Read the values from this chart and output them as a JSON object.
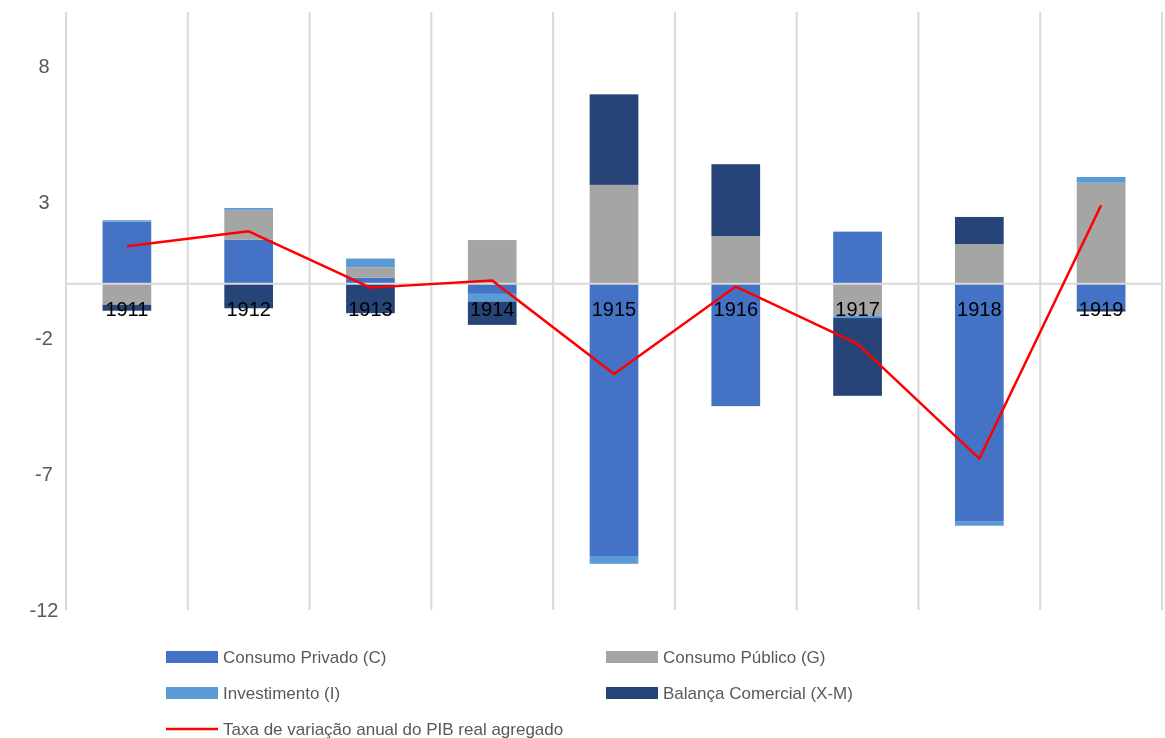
{
  "chart_data": {
    "type": "bar",
    "stacked": true,
    "categories": [
      "1911",
      "1912",
      "1913",
      "1914",
      "1915",
      "1916",
      "1917",
      "1918",
      "1919"
    ],
    "series": [
      {
        "name": "Consumo Privado (C)",
        "color": "#4472c4",
        "values": [
          2.29,
          1.62,
          0.23,
          -0.37,
          -10.04,
          -4.5,
          1.92,
          -8.75,
          -0.92
        ]
      },
      {
        "name": "Consumo Público (G)",
        "color": "#a5a5a5",
        "values": [
          -0.77,
          1.1,
          0.38,
          1.61,
          3.64,
          1.76,
          -1.16,
          1.46,
          3.72
        ]
      },
      {
        "name": "Investimento (I)",
        "color": "#5b9bd5",
        "values": [
          0.05,
          0.07,
          0.32,
          -0.28,
          -0.26,
          0,
          -0.1,
          -0.15,
          0.21
        ]
      },
      {
        "name": "Balança Comercial (X-M)",
        "color": "#264478",
        "values": [
          -0.22,
          -0.9,
          -1.08,
          -0.86,
          3.33,
          2.64,
          -2.86,
          1.0,
          -0.1
        ]
      },
      {
        "name": "Taxa de variação anual do PIB real agregado",
        "type": "line",
        "color": "#ff0000",
        "values": [
          1.38,
          1.93,
          -0.14,
          0.12,
          -3.32,
          -0.1,
          -2.21,
          -6.43,
          2.89
        ]
      }
    ],
    "ylim": [
      -12,
      10
    ],
    "yticks": [
      -12,
      -7,
      -2,
      3,
      8
    ],
    "grid": "x",
    "legend": "bottom",
    "marker": "none"
  }
}
